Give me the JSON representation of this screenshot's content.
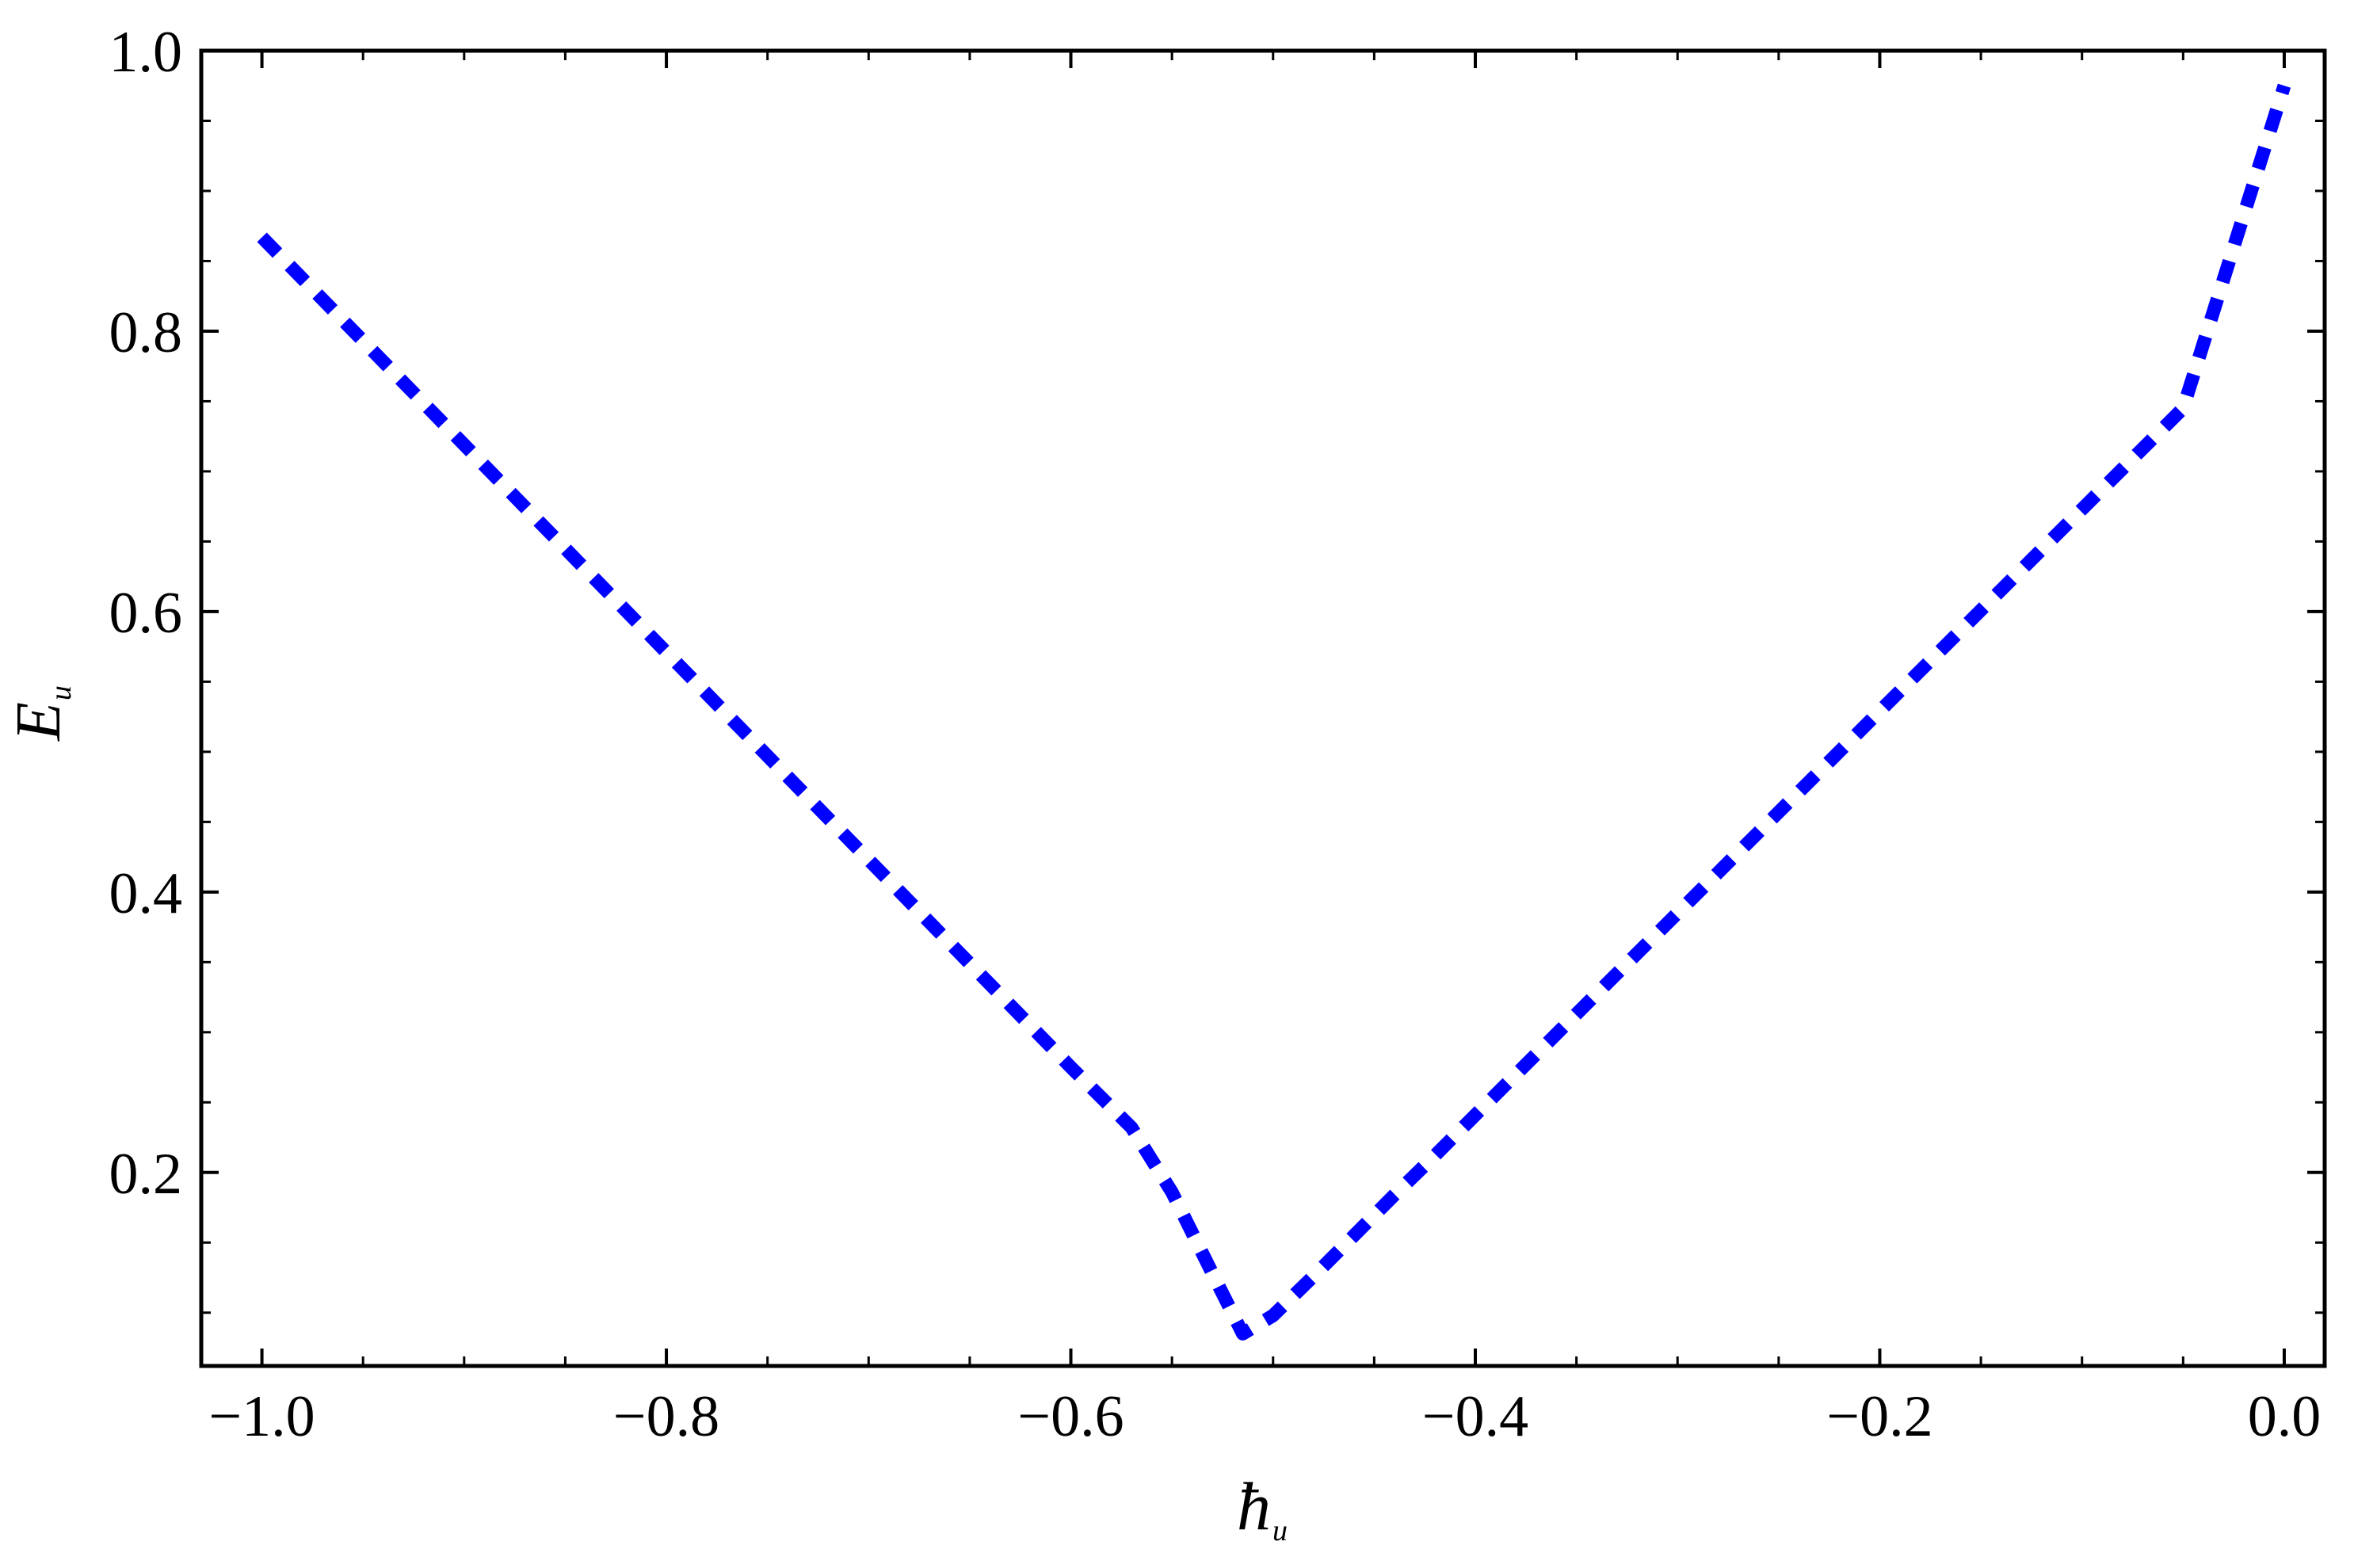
{
  "chart_data": {
    "type": "line",
    "title": "",
    "xlabel": "ħ",
    "xlabel_sub": "u",
    "ylabel": "E",
    "ylabel_sub": "u",
    "xlim": [
      -1.03,
      0.02
    ],
    "ylim": [
      0.062,
      1.0
    ],
    "xticks": [
      -1.0,
      -0.8,
      -0.6,
      -0.4,
      -0.2,
      0.0
    ],
    "xtick_labels": [
      "−1.0",
      "−0.8",
      "−0.6",
      "−0.4",
      "−0.2",
      "0.0"
    ],
    "yticks": [
      0.2,
      0.4,
      0.6,
      0.8,
      1.0
    ],
    "ytick_labels": [
      "0.2",
      "0.4",
      "0.6",
      "0.8",
      "1.0"
    ],
    "grid": false,
    "series": [
      {
        "color": "#0000ff",
        "line_style": "dashed",
        "x": [
          -1.0,
          -0.95,
          -0.9,
          -0.85,
          -0.8,
          -0.75,
          -0.7,
          -0.65,
          -0.6,
          -0.57,
          -0.55,
          -0.53,
          -0.515,
          -0.5,
          -0.48,
          -0.46,
          -0.44,
          -0.42,
          -0.4,
          -0.35,
          -0.3,
          -0.25,
          -0.2,
          -0.15,
          -0.1,
          -0.05,
          0.0
        ],
        "y": [
          0.867,
          0.793,
          0.719,
          0.645,
          0.571,
          0.497,
          0.423,
          0.349,
          0.275,
          0.232,
          0.186,
          0.128,
          0.085,
          0.098,
          0.126,
          0.155,
          0.184,
          0.212,
          0.241,
          0.313,
          0.385,
          0.457,
          0.529,
          0.601,
          0.673,
          0.745,
          0.975
        ]
      }
    ]
  }
}
